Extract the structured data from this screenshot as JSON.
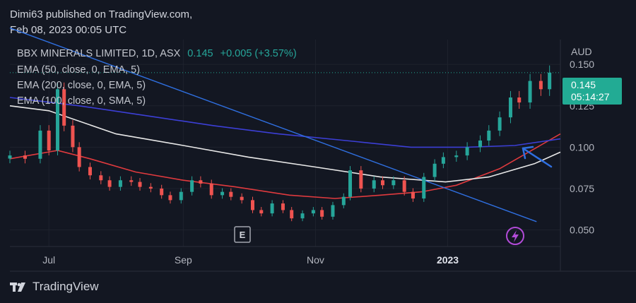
{
  "publisher": {
    "line1": "Dimi63 published on TradingView.com,",
    "line2": "Feb 08, 2023 00:05 UTC"
  },
  "legend": {
    "symbol": "BBX MINERALS LIMITED, 1D, ASX",
    "price": "0.145",
    "change": "+0.005 (+3.57%)",
    "ema50": "EMA (50, close, 0, EMA, 5)",
    "ema200": "EMA (200, close, 0, EMA, 5)",
    "sma100": "EMA (100, close, 0, SMA, 5)"
  },
  "price_tag": {
    "price": "0.145",
    "countdown": "05:14:27"
  },
  "earnings_marker": "E",
  "footer": {
    "brand": "TradingView"
  },
  "colors": {
    "background": "#131722",
    "up": "#26a69a",
    "down": "#ef5350",
    "ema50": "#e03a3e",
    "ema200": "#3c3fd6",
    "sma100": "#e8e8e8",
    "trendline": "#2f6fe0",
    "annotation_arrow": "#2f6fe0",
    "lightning": "#b24bd8"
  },
  "icons": [
    "lightning-icon",
    "tradingview-logo-icon",
    "annotation-arrow-icon"
  ],
  "chart_data": {
    "type": "candlestick",
    "currency": "AUD",
    "ylim": [
      0.04,
      0.165
    ],
    "y_ticks": [
      0.05,
      0.075,
      0.1,
      0.125,
      0.15
    ],
    "y_tick_labels": [
      "0.050",
      "0.075",
      "0.100",
      "0.125",
      "0.150"
    ],
    "x_ticks": [
      "Jul",
      "Sep",
      "Nov",
      "2023"
    ],
    "x_tick_dates": [
      "2022-07-01",
      "2022-09-01",
      "2022-11-01",
      "2023-01-01"
    ],
    "date_range": [
      "2022-06-13",
      "2023-02-22"
    ],
    "last_price": 0.145,
    "candles": [
      {
        "d": "2022-06-13",
        "c": 0.095
      },
      {
        "d": "2022-06-20",
        "c": 0.093
      },
      {
        "d": "2022-06-27",
        "c": 0.11
      },
      {
        "d": "2022-07-01",
        "c": 0.098
      },
      {
        "d": "2022-07-05",
        "c": 0.135
      },
      {
        "d": "2022-07-08",
        "c": 0.113
      },
      {
        "d": "2022-07-12",
        "c": 0.1
      },
      {
        "d": "2022-07-15",
        "c": 0.088
      },
      {
        "d": "2022-07-20",
        "c": 0.083
      },
      {
        "d": "2022-07-25",
        "c": 0.08
      },
      {
        "d": "2022-07-29",
        "c": 0.076
      },
      {
        "d": "2022-08-03",
        "c": 0.08
      },
      {
        "d": "2022-08-08",
        "c": 0.079
      },
      {
        "d": "2022-08-12",
        "c": 0.076
      },
      {
        "d": "2022-08-17",
        "c": 0.075
      },
      {
        "d": "2022-08-22",
        "c": 0.071
      },
      {
        "d": "2022-08-26",
        "c": 0.068
      },
      {
        "d": "2022-08-31",
        "c": 0.073
      },
      {
        "d": "2022-09-05",
        "c": 0.08
      },
      {
        "d": "2022-09-09",
        "c": 0.078
      },
      {
        "d": "2022-09-14",
        "c": 0.071
      },
      {
        "d": "2022-09-19",
        "c": 0.073
      },
      {
        "d": "2022-09-23",
        "c": 0.07
      },
      {
        "d": "2022-09-28",
        "c": 0.068
      },
      {
        "d": "2022-10-03",
        "c": 0.062
      },
      {
        "d": "2022-10-07",
        "c": 0.06
      },
      {
        "d": "2022-10-12",
        "c": 0.066
      },
      {
        "d": "2022-10-17",
        "c": 0.062
      },
      {
        "d": "2022-10-21",
        "c": 0.057
      },
      {
        "d": "2022-10-26",
        "c": 0.06
      },
      {
        "d": "2022-10-31",
        "c": 0.062
      },
      {
        "d": "2022-11-04",
        "c": 0.058
      },
      {
        "d": "2022-11-09",
        "c": 0.065
      },
      {
        "d": "2022-11-14",
        "c": 0.07
      },
      {
        "d": "2022-11-17",
        "c": 0.086
      },
      {
        "d": "2022-11-22",
        "c": 0.075
      },
      {
        "d": "2022-11-28",
        "c": 0.08
      },
      {
        "d": "2022-12-02",
        "c": 0.077
      },
      {
        "d": "2022-12-07",
        "c": 0.08
      },
      {
        "d": "2022-12-12",
        "c": 0.073
      },
      {
        "d": "2022-12-16",
        "c": 0.069
      },
      {
        "d": "2022-12-21",
        "c": 0.082
      },
      {
        "d": "2022-12-26",
        "c": 0.09
      },
      {
        "d": "2022-12-30",
        "c": 0.094
      },
      {
        "d": "2023-01-05",
        "c": 0.095
      },
      {
        "d": "2023-01-10",
        "c": 0.1
      },
      {
        "d": "2023-01-16",
        "c": 0.104
      },
      {
        "d": "2023-01-20",
        "c": 0.11
      },
      {
        "d": "2023-01-25",
        "c": 0.118
      },
      {
        "d": "2023-01-30",
        "c": 0.13
      },
      {
        "d": "2023-02-03",
        "c": 0.127
      },
      {
        "d": "2023-02-08",
        "c": 0.14
      },
      {
        "d": "2023-02-13",
        "c": 0.135
      },
      {
        "d": "2023-02-17",
        "c": 0.145
      }
    ],
    "series": [
      {
        "name": "EMA (50, close, 0, EMA, 5)",
        "color": "#e03a3e",
        "points": [
          [
            "2022-06-13",
            0.093
          ],
          [
            "2022-07-05",
            0.098
          ],
          [
            "2022-07-20",
            0.093
          ],
          [
            "2022-08-10",
            0.085
          ],
          [
            "2022-09-01",
            0.08
          ],
          [
            "2022-09-25",
            0.076
          ],
          [
            "2022-10-20",
            0.071
          ],
          [
            "2022-11-10",
            0.069
          ],
          [
            "2022-12-01",
            0.071
          ],
          [
            "2022-12-20",
            0.073
          ],
          [
            "2023-01-05",
            0.077
          ],
          [
            "2023-01-25",
            0.087
          ],
          [
            "2023-02-10",
            0.099
          ],
          [
            "2023-02-22",
            0.108
          ]
        ]
      },
      {
        "name": "EMA (200, close, 0, EMA, 5)",
        "color": "#3c3fd6",
        "points": [
          [
            "2022-06-13",
            0.13
          ],
          [
            "2022-07-15",
            0.125
          ],
          [
            "2022-08-15",
            0.119
          ],
          [
            "2022-09-15",
            0.113
          ],
          [
            "2022-10-15",
            0.108
          ],
          [
            "2022-11-15",
            0.104
          ],
          [
            "2022-12-15",
            0.1
          ],
          [
            "2023-01-10",
            0.1
          ],
          [
            "2023-02-01",
            0.101
          ],
          [
            "2023-02-22",
            0.105
          ]
        ]
      },
      {
        "name": "EMA (100, close, 0, SMA, 5)",
        "color": "#e8e8e8",
        "points": [
          [
            "2022-06-13",
            0.125
          ],
          [
            "2022-07-01",
            0.122
          ],
          [
            "2022-08-01",
            0.108
          ],
          [
            "2022-09-01",
            0.101
          ],
          [
            "2022-10-01",
            0.094
          ],
          [
            "2022-11-01",
            0.088
          ],
          [
            "2022-12-01",
            0.082
          ],
          [
            "2022-12-31",
            0.079
          ],
          [
            "2023-01-20",
            0.082
          ],
          [
            "2023-02-10",
            0.09
          ],
          [
            "2023-02-22",
            0.097
          ]
        ]
      }
    ],
    "trendline": [
      [
        "2022-06-13",
        0.172
      ],
      [
        "2023-02-11",
        0.055
      ]
    ]
  }
}
